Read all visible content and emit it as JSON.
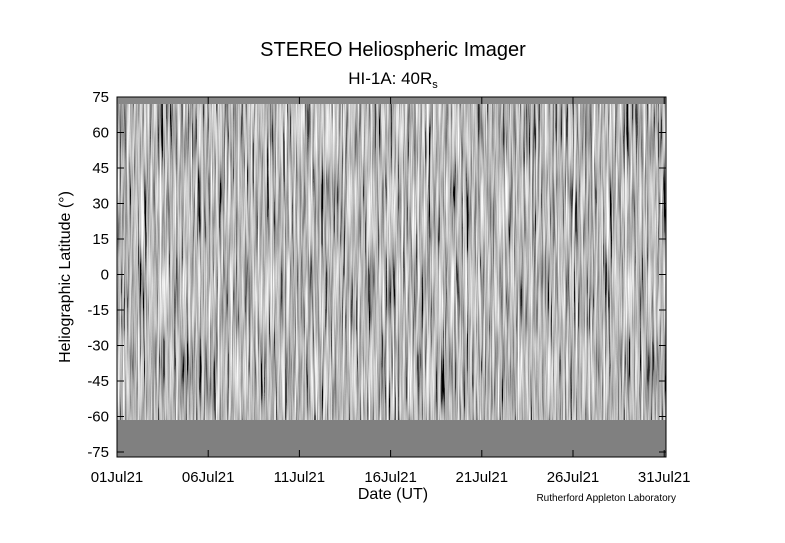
{
  "chart_data": {
    "type": "image",
    "title": "STEREO Heliospheric Imager",
    "subtitle": {
      "text": "HI-1A: 40R",
      "subscript": "s"
    },
    "ylabel": "Heliographic Latitude (°)",
    "xlabel": "Date (UT)",
    "credit": "Rutherford Appleton Laboratory",
    "ylim": [
      -75,
      75
    ],
    "yticks": [
      75,
      60,
      45,
      30,
      15,
      0,
      -15,
      -30,
      -45,
      -60,
      -75
    ],
    "xticks": [
      "01Jul21",
      "06Jul21",
      "11Jul21",
      "16Jul21",
      "21Jul21",
      "26Jul21",
      "31Jul21"
    ]
  }
}
